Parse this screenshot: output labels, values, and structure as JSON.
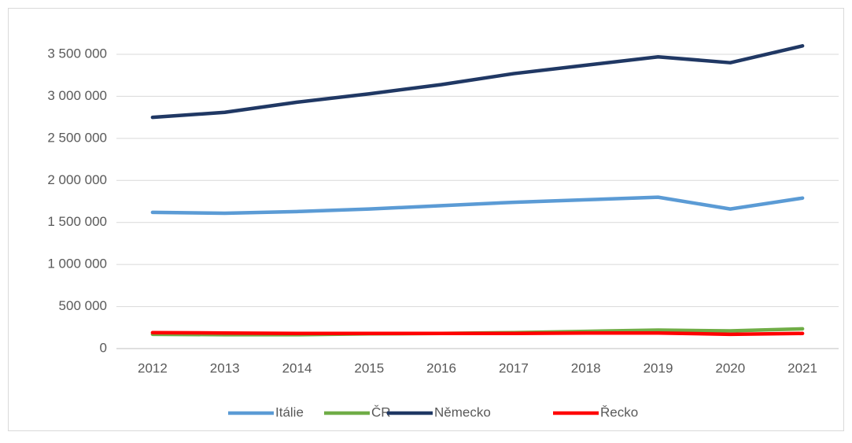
{
  "chart_data": {
    "type": "line",
    "categories": [
      "2012",
      "2013",
      "2014",
      "2015",
      "2016",
      "2017",
      "2018",
      "2019",
      "2020",
      "2021"
    ],
    "series": [
      {
        "name": "Itálie",
        "color": "#5b9bd5",
        "values": [
          1620000,
          1610000,
          1630000,
          1660000,
          1700000,
          1740000,
          1770000,
          1800000,
          1660000,
          1790000
        ]
      },
      {
        "name": "ČR",
        "color": "#70ad47",
        "values": [
          170000,
          165000,
          165000,
          175000,
          180000,
          190000,
          205000,
          220000,
          210000,
          235000
        ]
      },
      {
        "name": "Německo",
        "color": "#203864",
        "values": [
          2750000,
          2810000,
          2930000,
          3030000,
          3140000,
          3270000,
          3370000,
          3470000,
          3400000,
          3600000
        ]
      },
      {
        "name": "Řecko",
        "color": "#ff0000",
        "values": [
          190000,
          185000,
          180000,
          180000,
          180000,
          180000,
          185000,
          185000,
          170000,
          180000
        ]
      }
    ],
    "ylim": [
      0,
      3500000
    ],
    "yticks": [
      0,
      {
        "value": 500000,
        "label": "500 000"
      },
      {
        "value": 1000000,
        "label": "1 000 000"
      },
      {
        "value": 1500000,
        "label": "1 500 000"
      },
      {
        "value": 2000000,
        "label": "2 000 000"
      },
      {
        "value": 2500000,
        "label": "2 500 000"
      },
      {
        "value": 3000000,
        "label": "3 000 000"
      },
      {
        "value": 3500000,
        "label": "3 500 000"
      }
    ],
    "grid": true,
    "legend": "bottom"
  }
}
